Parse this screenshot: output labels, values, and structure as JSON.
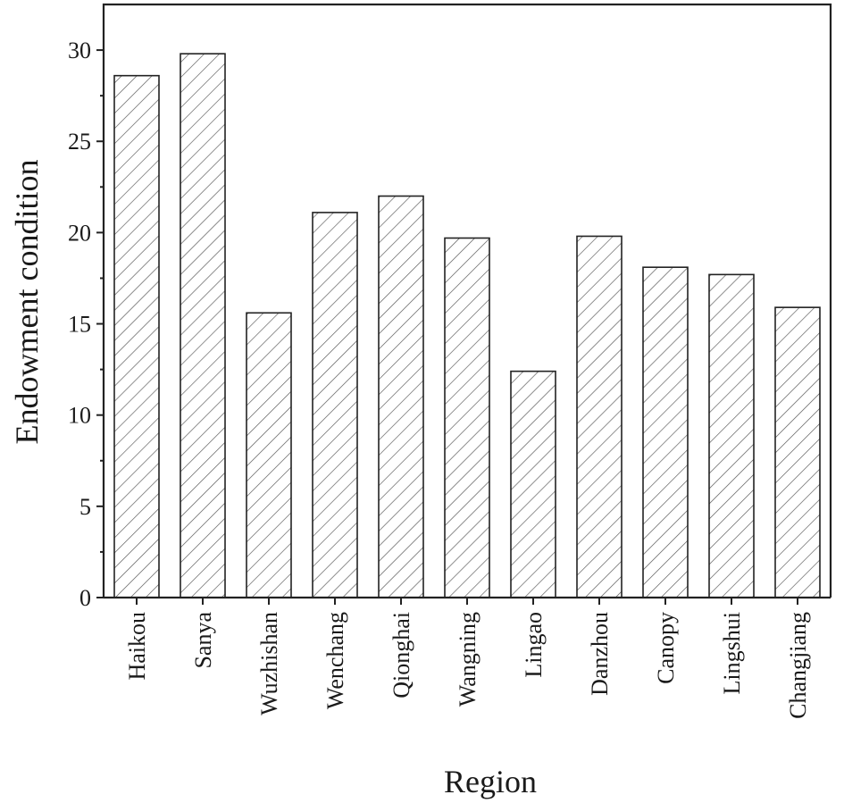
{
  "chart_data": {
    "type": "bar",
    "categories": [
      "Haikou",
      "Sanya",
      "Wuzhishan",
      "Wenchang",
      "Qionghai",
      "Wangning",
      "Lingao",
      "Danzhou",
      "Canopy",
      "Lingshui",
      "Changjiang"
    ],
    "values": [
      28.6,
      29.8,
      15.6,
      21.1,
      22.0,
      19.7,
      12.4,
      19.8,
      18.1,
      17.7,
      15.9
    ],
    "xlabel": "Region",
    "ylabel": "Endowment condition",
    "ylim": [
      0,
      32.5
    ],
    "yticks": [
      0,
      5,
      10,
      15,
      20,
      25,
      30
    ],
    "grid": false,
    "legend": "none",
    "bar_fill": "hatched",
    "colors": {
      "bar_stroke": "#222222",
      "hatch": "#555555",
      "background": "#ffffff"
    }
  }
}
